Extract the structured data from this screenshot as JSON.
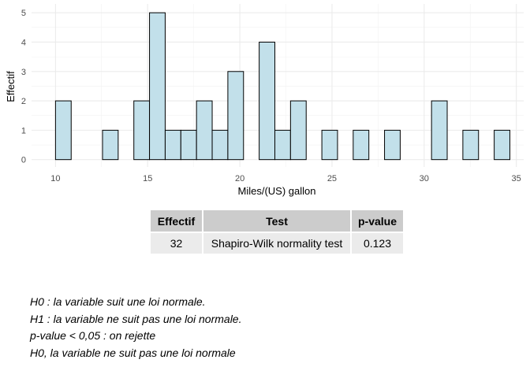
{
  "chart_data": {
    "type": "bar",
    "subtype": "histogram",
    "bins": [
      {
        "x0": 10.0,
        "x1": 10.85,
        "count": 2
      },
      {
        "x0": 10.85,
        "x1": 11.7,
        "count": 0
      },
      {
        "x0": 11.7,
        "x1": 12.55,
        "count": 0
      },
      {
        "x0": 12.55,
        "x1": 13.4,
        "count": 1
      },
      {
        "x0": 13.4,
        "x1": 14.25,
        "count": 0
      },
      {
        "x0": 14.25,
        "x1": 15.1,
        "count": 2
      },
      {
        "x0": 15.1,
        "x1": 15.95,
        "count": 5
      },
      {
        "x0": 15.95,
        "x1": 16.8,
        "count": 1
      },
      {
        "x0": 16.8,
        "x1": 17.65,
        "count": 1
      },
      {
        "x0": 17.65,
        "x1": 18.5,
        "count": 2
      },
      {
        "x0": 18.5,
        "x1": 19.35,
        "count": 1
      },
      {
        "x0": 19.35,
        "x1": 20.2,
        "count": 3
      },
      {
        "x0": 20.2,
        "x1": 21.05,
        "count": 0
      },
      {
        "x0": 21.05,
        "x1": 21.9,
        "count": 4
      },
      {
        "x0": 21.9,
        "x1": 22.75,
        "count": 1
      },
      {
        "x0": 22.75,
        "x1": 23.6,
        "count": 2
      },
      {
        "x0": 23.6,
        "x1": 24.45,
        "count": 0
      },
      {
        "x0": 24.45,
        "x1": 25.3,
        "count": 1
      },
      {
        "x0": 25.3,
        "x1": 26.15,
        "count": 0
      },
      {
        "x0": 26.15,
        "x1": 27.0,
        "count": 1
      },
      {
        "x0": 27.0,
        "x1": 27.85,
        "count": 0
      },
      {
        "x0": 27.85,
        "x1": 28.7,
        "count": 1
      },
      {
        "x0": 28.7,
        "x1": 29.55,
        "count": 0
      },
      {
        "x0": 29.55,
        "x1": 30.4,
        "count": 0
      },
      {
        "x0": 30.4,
        "x1": 31.25,
        "count": 2
      },
      {
        "x0": 31.25,
        "x1": 32.1,
        "count": 0
      },
      {
        "x0": 32.1,
        "x1": 32.95,
        "count": 1
      },
      {
        "x0": 32.95,
        "x1": 33.8,
        "count": 0
      },
      {
        "x0": 33.8,
        "x1": 34.65,
        "count": 1
      }
    ],
    "xlabel": "Miles/(US) gallon",
    "ylabel": "Effectif",
    "xlim": [
      8.7,
      35.4
    ],
    "ylim": [
      -0.25,
      5.3
    ],
    "xticks": [
      10,
      15,
      20,
      25,
      30,
      35
    ],
    "yticks": [
      0,
      1,
      2,
      3,
      4,
      5
    ],
    "grid": true,
    "bar_fill": "#c2e0ea",
    "bar_stroke": "#000000"
  },
  "table": {
    "headers": [
      "Effectif",
      "Test",
      "p-value"
    ],
    "row": [
      "32",
      "Shapiro-Wilk normality test",
      "0.123"
    ]
  },
  "notes": [
    "H0 : la variable suit une loi normale.",
    "H1 : la variable ne suit pas une loi normale.",
    "p-value < 0,05 : on rejette",
    "H0, la variable ne suit pas une loi normale"
  ]
}
